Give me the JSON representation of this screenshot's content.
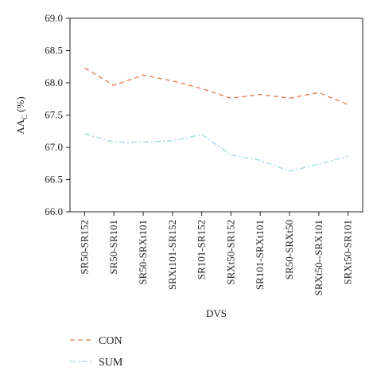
{
  "chart_data": {
    "type": "line",
    "title": "",
    "xlabel": "DVS",
    "ylabel": "AA",
    "ylabel_subscript": "C",
    "ylabel_suffix": " (%)",
    "ylim": [
      66.0,
      69.0
    ],
    "yticks": [
      "66.0",
      "66.5",
      "67.0",
      "67.5",
      "68.0",
      "68.5",
      "69.0"
    ],
    "grid": false,
    "legend_position": "bottom-left",
    "categories": [
      "SR50-SR152",
      "SR50-SR101",
      "SR50-SRXt101",
      "SRXt101-SR152",
      "SR101-SR152",
      "SRXt50-SR152",
      "SR101-SRXt101",
      "SR50-SRXt50",
      "SRXt50--SRX101",
      "SRXt50-SR101"
    ],
    "series": [
      {
        "name": "CON",
        "color": "#e07b4f",
        "dash": "dashed",
        "values": [
          68.23,
          67.96,
          68.12,
          68.03,
          67.91,
          67.76,
          67.82,
          67.76,
          67.85,
          67.66
        ]
      },
      {
        "name": "SUM",
        "color": "#9fd6e2",
        "dash": "dashdot",
        "values": [
          67.21,
          67.08,
          67.08,
          67.1,
          67.2,
          66.88,
          66.8,
          66.63,
          66.74,
          66.86
        ]
      }
    ]
  }
}
